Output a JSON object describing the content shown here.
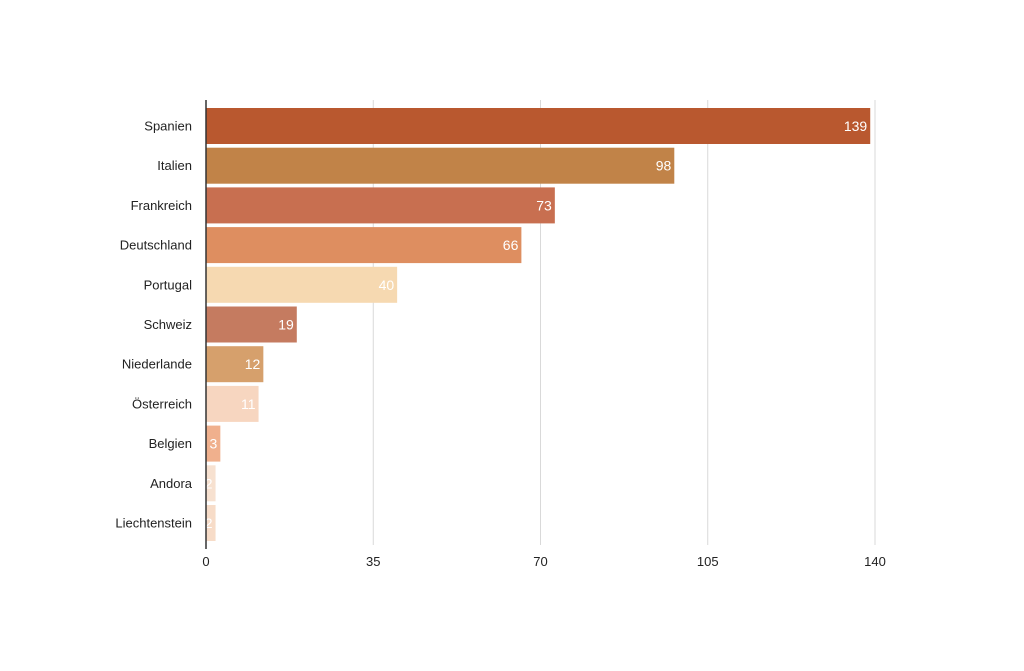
{
  "chart_data": {
    "type": "bar",
    "orientation": "horizontal",
    "categories": [
      "Spanien",
      "Italien",
      "Frankreich",
      "Deutschland",
      "Portugal",
      "Schweiz",
      "Niederlande",
      "Österreich",
      "Belgien",
      "Andora",
      "Liechtenstein"
    ],
    "values": [
      139,
      98,
      73,
      66,
      40,
      19,
      12,
      11,
      3,
      2,
      2
    ],
    "colors": [
      "#B9582F",
      "#C18348",
      "#C86F50",
      "#DE8E60",
      "#F6D9B1",
      "#C57B60",
      "#D6A06C",
      "#F7D6C0",
      "#F0B08D",
      "#F7E1D0",
      "#F7DCC8"
    ],
    "value_label_color": "#ffffff",
    "xlim": [
      0,
      140
    ],
    "xticks": [
      "0",
      "35",
      "70",
      "105",
      "140"
    ],
    "grid": "vertical",
    "legend": "none",
    "title": "",
    "xlabel": "",
    "ylabel": ""
  }
}
